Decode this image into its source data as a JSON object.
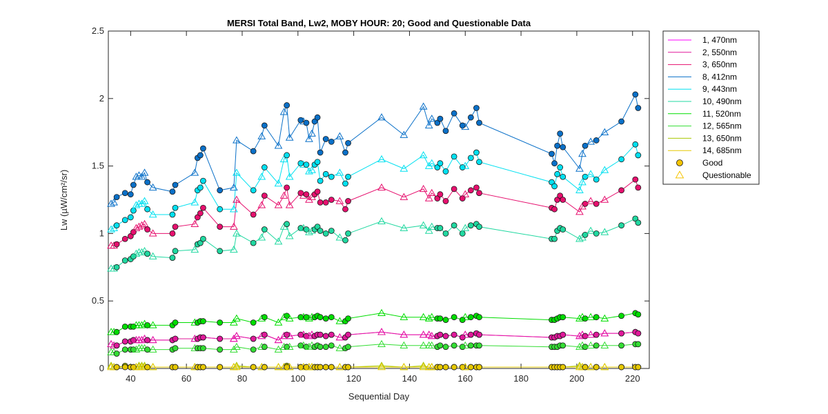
{
  "chart_data": {
    "type": "line",
    "title": "MERSI Total Band,  Lw2, MOBY HOUR: 20;  Good and Questionable Data",
    "xlabel": "Sequential Day",
    "ylabel": "Lw (µW/cm²/sr)",
    "xlim": [
      32,
      226
    ],
    "ylim": [
      0,
      2.5
    ],
    "xticks": [
      "40",
      "60",
      "80",
      "100",
      "120",
      "140",
      "160",
      "180",
      "200",
      "220"
    ],
    "yticks": [
      "0",
      "0.5",
      "1",
      "1.5",
      "2",
      "2.5"
    ],
    "grid": false,
    "legend_position": "outside-right",
    "x": [
      33,
      34,
      35,
      38,
      40,
      41,
      42,
      43,
      44,
      45,
      46,
      48,
      55,
      56,
      63,
      64,
      65,
      66,
      72,
      77,
      78,
      84,
      87,
      88,
      93,
      95,
      96,
      97,
      101,
      102,
      103,
      104,
      105,
      106,
      107,
      108,
      110,
      112,
      115,
      117,
      118,
      130,
      138,
      145,
      147,
      148,
      150,
      151,
      153,
      156,
      159,
      160,
      162,
      164,
      165,
      191,
      192,
      193,
      194,
      195,
      201,
      202,
      203,
      205,
      207,
      210,
      216,
      221,
      222
    ],
    "series": [
      {
        "name": "1, 470nm",
        "color": "#ff00ff",
        "values": [
          0.18,
          0.17,
          0.17,
          0.2,
          0.2,
          0.21,
          0.21,
          0.21,
          0.21,
          0.22,
          0.21,
          0.21,
          0.21,
          0.22,
          0.22,
          0.22,
          0.23,
          0.23,
          0.22,
          0.22,
          0.24,
          0.22,
          0.24,
          0.25,
          0.21,
          0.24,
          0.25,
          0.24,
          0.25,
          0.25,
          0.24,
          0.24,
          0.25,
          0.24,
          0.25,
          0.25,
          0.24,
          0.25,
          0.23,
          0.23,
          0.25,
          0.27,
          0.25,
          0.25,
          0.25,
          0.24,
          0.24,
          0.25,
          0.24,
          0.25,
          0.23,
          0.25,
          0.25,
          0.26,
          0.25,
          0.23,
          0.23,
          0.24,
          0.24,
          0.25,
          0.24,
          0.25,
          0.24,
          0.25,
          0.25,
          0.26,
          0.26,
          0.27,
          0.26
        ]
      },
      {
        "name": "2, 550nm",
        "color": "#e0189a",
        "values": [
          0.18,
          0.17,
          0.17,
          0.2,
          0.2,
          0.21,
          0.21,
          0.21,
          0.21,
          0.22,
          0.21,
          0.21,
          0.21,
          0.22,
          0.22,
          0.22,
          0.23,
          0.23,
          0.22,
          0.22,
          0.24,
          0.22,
          0.24,
          0.25,
          0.21,
          0.24,
          0.25,
          0.24,
          0.25,
          0.25,
          0.24,
          0.24,
          0.25,
          0.24,
          0.25,
          0.25,
          0.24,
          0.25,
          0.23,
          0.23,
          0.25,
          0.27,
          0.25,
          0.25,
          0.25,
          0.24,
          0.24,
          0.25,
          0.24,
          0.25,
          0.23,
          0.25,
          0.25,
          0.26,
          0.25,
          0.23,
          0.23,
          0.24,
          0.24,
          0.25,
          0.24,
          0.25,
          0.24,
          0.25,
          0.25,
          0.26,
          0.26,
          0.27,
          0.26
        ]
      },
      {
        "name": "3, 650nm",
        "color": "#e6106e",
        "values": [
          0.91,
          0.91,
          0.92,
          0.96,
          0.98,
          1.01,
          1.04,
          1.05,
          1.06,
          1.07,
          1.03,
          1.0,
          1.0,
          1.05,
          1.07,
          1.12,
          1.15,
          1.19,
          1.05,
          1.05,
          1.25,
          1.14,
          1.21,
          1.28,
          1.21,
          1.28,
          1.34,
          1.21,
          1.3,
          1.28,
          1.29,
          1.25,
          1.27,
          1.29,
          1.31,
          1.23,
          1.23,
          1.25,
          1.24,
          1.18,
          1.24,
          1.34,
          1.27,
          1.33,
          1.26,
          1.3,
          1.26,
          1.29,
          1.24,
          1.33,
          1.26,
          1.29,
          1.32,
          1.34,
          1.3,
          1.19,
          1.18,
          1.25,
          1.28,
          1.25,
          1.16,
          1.2,
          1.22,
          1.24,
          1.22,
          1.25,
          1.32,
          1.4,
          1.34
        ]
      },
      {
        "name": "8, 412nm",
        "color": "#0a70c8",
        "values": [
          1.22,
          1.23,
          1.27,
          1.3,
          1.29,
          1.36,
          1.42,
          1.43,
          1.42,
          1.45,
          1.38,
          1.34,
          1.31,
          1.36,
          1.45,
          1.56,
          1.58,
          1.63,
          1.32,
          1.34,
          1.69,
          1.61,
          1.72,
          1.8,
          1.65,
          1.9,
          1.95,
          1.71,
          1.84,
          1.83,
          1.82,
          1.7,
          1.74,
          1.83,
          1.86,
          1.6,
          1.7,
          1.68,
          1.72,
          1.6,
          1.67,
          1.86,
          1.73,
          1.94,
          1.8,
          1.85,
          1.82,
          1.85,
          1.76,
          1.89,
          1.8,
          1.79,
          1.86,
          1.93,
          1.82,
          1.59,
          1.52,
          1.65,
          1.74,
          1.64,
          1.48,
          1.59,
          1.65,
          1.68,
          1.69,
          1.75,
          1.83,
          2.03,
          1.93
        ]
      },
      {
        "name": "9, 443nm",
        "color": "#00e0f0",
        "values": [
          1.03,
          1.04,
          1.06,
          1.1,
          1.12,
          1.17,
          1.21,
          1.22,
          1.22,
          1.24,
          1.18,
          1.14,
          1.14,
          1.19,
          1.23,
          1.32,
          1.34,
          1.39,
          1.18,
          1.18,
          1.45,
          1.32,
          1.42,
          1.49,
          1.37,
          1.55,
          1.58,
          1.42,
          1.52,
          1.51,
          1.51,
          1.46,
          1.47,
          1.51,
          1.53,
          1.39,
          1.44,
          1.42,
          1.45,
          1.37,
          1.42,
          1.55,
          1.48,
          1.58,
          1.5,
          1.52,
          1.49,
          1.52,
          1.46,
          1.57,
          1.49,
          1.5,
          1.56,
          1.6,
          1.53,
          1.38,
          1.35,
          1.44,
          1.49,
          1.42,
          1.32,
          1.38,
          1.42,
          1.44,
          1.4,
          1.47,
          1.55,
          1.66,
          1.58
        ]
      },
      {
        "name": "10, 490nm",
        "color": "#20d8a0",
        "values": [
          0.74,
          0.74,
          0.75,
          0.8,
          0.81,
          0.83,
          0.85,
          0.86,
          0.86,
          0.87,
          0.85,
          0.83,
          0.82,
          0.87,
          0.88,
          0.92,
          0.93,
          0.96,
          0.87,
          0.88,
          1.0,
          0.93,
          0.97,
          1.03,
          0.94,
          1.05,
          1.07,
          0.98,
          1.04,
          1.04,
          1.03,
          1.01,
          1.02,
          1.03,
          1.05,
          1.02,
          1.0,
          1.02,
          0.97,
          0.95,
          1.0,
          1.09,
          1.04,
          1.06,
          1.02,
          1.05,
          1.04,
          1.04,
          1.0,
          1.06,
          1.0,
          1.04,
          1.06,
          1.07,
          1.05,
          0.96,
          0.96,
          1.02,
          1.04,
          1.03,
          0.96,
          0.97,
          0.99,
          1.02,
          1.0,
          1.01,
          1.06,
          1.11,
          1.08
        ]
      },
      {
        "name": "11, 520nm",
        "color": "#00dd00",
        "values": [
          0.27,
          0.27,
          0.27,
          0.31,
          0.31,
          0.31,
          0.32,
          0.32,
          0.32,
          0.33,
          0.32,
          0.32,
          0.32,
          0.34,
          0.34,
          0.34,
          0.35,
          0.35,
          0.34,
          0.34,
          0.37,
          0.34,
          0.37,
          0.38,
          0.34,
          0.38,
          0.39,
          0.37,
          0.38,
          0.38,
          0.38,
          0.37,
          0.38,
          0.38,
          0.39,
          0.38,
          0.37,
          0.38,
          0.35,
          0.35,
          0.37,
          0.41,
          0.38,
          0.38,
          0.37,
          0.38,
          0.37,
          0.37,
          0.36,
          0.38,
          0.36,
          0.38,
          0.38,
          0.39,
          0.38,
          0.36,
          0.36,
          0.37,
          0.38,
          0.38,
          0.37,
          0.38,
          0.37,
          0.38,
          0.38,
          0.37,
          0.39,
          0.41,
          0.4
        ]
      },
      {
        "name": "12, 565nm",
        "color": "#33dd33",
        "values": [
          0.12,
          0.12,
          0.11,
          0.14,
          0.14,
          0.14,
          0.14,
          0.15,
          0.15,
          0.15,
          0.14,
          0.14,
          0.14,
          0.15,
          0.15,
          0.15,
          0.15,
          0.15,
          0.14,
          0.14,
          0.16,
          0.14,
          0.16,
          0.16,
          0.14,
          0.16,
          0.16,
          0.16,
          0.17,
          0.17,
          0.16,
          0.16,
          0.17,
          0.16,
          0.17,
          0.16,
          0.16,
          0.17,
          0.15,
          0.15,
          0.16,
          0.18,
          0.17,
          0.17,
          0.17,
          0.17,
          0.16,
          0.17,
          0.16,
          0.17,
          0.16,
          0.17,
          0.17,
          0.17,
          0.17,
          0.16,
          0.16,
          0.16,
          0.17,
          0.17,
          0.16,
          0.17,
          0.16,
          0.17,
          0.17,
          0.17,
          0.17,
          0.18,
          0.18
        ]
      },
      {
        "name": "13, 650nm",
        "color": "#a8c800",
        "values": [
          0.02,
          0.01,
          0.01,
          0.02,
          0.01,
          0.01,
          0.01,
          0.02,
          0.02,
          0.02,
          0.01,
          0.01,
          0.01,
          0.01,
          0.01,
          0.01,
          0.01,
          0.01,
          0.01,
          0.01,
          0.02,
          0.01,
          0.01,
          0.01,
          0.01,
          0.01,
          0.02,
          0.01,
          0.01,
          0.01,
          0.01,
          0.01,
          0.01,
          0.01,
          0.01,
          0.01,
          0.01,
          0.01,
          0.01,
          0.01,
          0.01,
          0.02,
          0.01,
          0.02,
          0.01,
          0.01,
          0.01,
          0.01,
          0.01,
          0.01,
          0.01,
          0.01,
          0.01,
          0.01,
          0.01,
          0.01,
          0.01,
          0.01,
          0.01,
          0.01,
          0.02,
          0.01,
          0.01,
          0.01,
          0.01,
          0.01,
          0.01,
          0.01,
          0.01
        ]
      },
      {
        "name": "14, 685nm",
        "color": "#e6c800",
        "values": [
          0.01,
          0.01,
          0.01,
          0.01,
          0.01,
          0.01,
          0.01,
          0.01,
          0.01,
          0.01,
          0.01,
          0.01,
          0.01,
          0.01,
          0.01,
          0.01,
          0.01,
          0.01,
          0.01,
          0.01,
          0.01,
          0.01,
          0.01,
          0.01,
          0.01,
          0.01,
          0.01,
          0.01,
          0.01,
          0.01,
          0.01,
          0.01,
          0.01,
          0.01,
          0.01,
          0.01,
          0.01,
          0.01,
          0.01,
          0.01,
          0.01,
          0.01,
          0.01,
          0.01,
          0.01,
          0.01,
          0.01,
          0.01,
          0.01,
          0.01,
          0.01,
          0.01,
          0.01,
          0.01,
          0.01,
          0.01,
          0.01,
          0.01,
          0.01,
          0.01,
          0.01,
          0.01,
          0.01,
          0.01,
          0.01,
          0.01,
          0.01,
          0.01,
          0.01
        ]
      }
    ],
    "point_quality": [
      "Q",
      "Q",
      "G",
      "G",
      "G",
      "G",
      "Q",
      "Q",
      "Q",
      "Q",
      "G",
      "Q",
      "G",
      "G",
      "Q",
      "G",
      "G",
      "G",
      "G",
      "Q",
      "Q",
      "G",
      "Q",
      "G",
      "Q",
      "Q",
      "G",
      "Q",
      "G",
      "Q",
      "G",
      "Q",
      "Q",
      "G",
      "G",
      "G",
      "G",
      "G",
      "Q",
      "G",
      "G",
      "Q",
      "Q",
      "Q",
      "Q",
      "Q",
      "G",
      "G",
      "G",
      "G",
      "G",
      "Q",
      "G",
      "G",
      "G",
      "G",
      "G",
      "G",
      "G",
      "G",
      "Q",
      "Q",
      "G",
      "Q",
      "G",
      "Q",
      "G",
      "G",
      "G"
    ],
    "marker_legend": [
      {
        "label": "Good",
        "marker": "circle",
        "color": "#f5c400"
      },
      {
        "label": "Questionable",
        "marker": "triangle",
        "color": "#f5c400"
      }
    ]
  }
}
